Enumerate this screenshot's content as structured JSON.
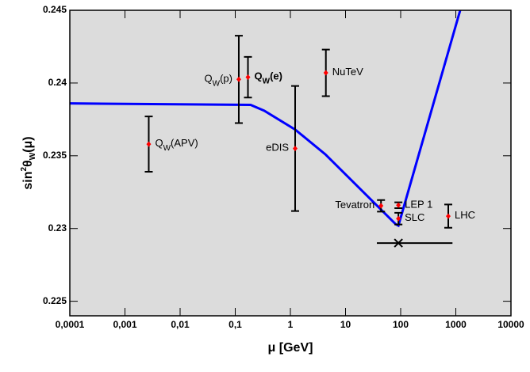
{
  "chart_data": {
    "type": "scatter",
    "x_label": [
      {
        "text": "μ"
      },
      {
        "text": " [GeV]"
      }
    ],
    "y_label": [
      {
        "text": "sin"
      },
      {
        "text": "2",
        "shift": "super"
      },
      {
        "text": "θ"
      },
      {
        "text": "W",
        "shift": "sub"
      },
      {
        "text": "(μ)"
      }
    ],
    "log_x": true,
    "xlim": [
      0.0001,
      10000
    ],
    "xticks": [
      {
        "value": 0.0001,
        "label": "0,0001"
      },
      {
        "value": 0.001,
        "label": "0,001"
      },
      {
        "value": 0.01,
        "label": "0,01"
      },
      {
        "value": 0.1,
        "label": "0,1"
      },
      1,
      10,
      100,
      1000,
      10000
    ],
    "ylim": [
      0.224,
      0.245
    ],
    "yticks": [
      0.225,
      0.23,
      0.235,
      0.24,
      0.245
    ],
    "background": "#dcdcdc",
    "curve": {
      "color": "#0000ff",
      "x": [
        0.0001,
        0.19,
        0.335,
        1.22,
        4.3,
        44,
        81,
        91,
        1200
      ],
      "y": [
        0.2386,
        0.2385,
        0.2381,
        0.2368,
        0.2351,
        0.2313,
        0.2303,
        0.2302,
        0.245
      ]
    },
    "points": {
      "color": "#ff0000",
      "error_color": "#000000",
      "items": [
        {
          "label": [
            {
              "text": "Q"
            },
            {
              "text": "W",
              "shift": "sub"
            },
            {
              "text": "(APV)"
            }
          ],
          "side": "right",
          "x": 0.0027,
          "y": 0.2358,
          "err": 0.0019
        },
        {
          "label": [
            {
              "text": "Q"
            },
            {
              "text": "W",
              "shift": "sub"
            },
            {
              "text": "(p)"
            }
          ],
          "side": "left",
          "x": 0.116,
          "y": 0.24025,
          "err": 0.003
        },
        {
          "label": [
            {
              "text": "Q"
            },
            {
              "text": "W",
              "shift": "sub"
            },
            {
              "text": "(e)"
            }
          ],
          "side": "right",
          "bold": true,
          "x": 0.17,
          "y": 0.2404,
          "err": 0.0014
        },
        {
          "label": [
            {
              "text": "NuTeV"
            }
          ],
          "side": "right",
          "x": 4.4,
          "y": 0.2407,
          "err": 0.0016
        },
        {
          "label": [
            {
              "text": "eDIS"
            }
          ],
          "side": "left",
          "x": 1.22,
          "y": 0.2355,
          "err": 0.0043
        },
        {
          "label": [
            {
              "text": "Tevatron"
            }
          ],
          "side": "left",
          "x": 44,
          "y": 0.23156,
          "err": 0.0004
        },
        {
          "label": [
            {
              "text": "LEP 1"
            }
          ],
          "side": "right",
          "x": 91,
          "y": 0.2316,
          "err": 0.0002
        },
        {
          "label": [
            {
              "text": "SLC"
            }
          ],
          "side": "right",
          "x": 91,
          "y": 0.23068,
          "err": 0.0004
        },
        {
          "label": [
            {
              "text": "LHC"
            }
          ],
          "side": "right",
          "x": 730,
          "y": 0.23085,
          "err": 0.0008
        }
      ]
    },
    "scale_range": {
      "x": 91,
      "y": 0.229,
      "x_low": 37,
      "x_high": 870
    }
  }
}
